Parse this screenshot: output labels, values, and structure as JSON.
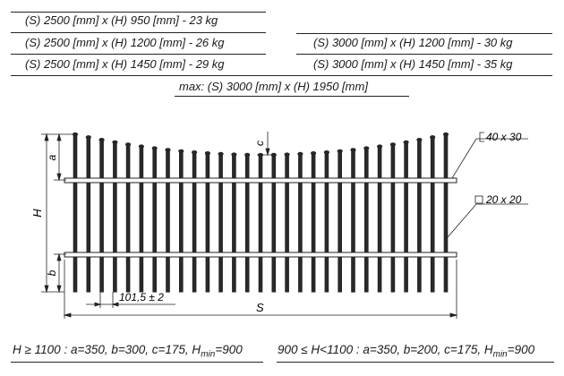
{
  "specs_left": [
    "(S) 2500 [mm] x (H) 950 [mm]   -  23 kg",
    "(S) 2500 [mm] x (H) 1200 [mm]  -  26 kg",
    "(S) 2500 [mm] x (H) 1450 [mm]  -  29 kg"
  ],
  "specs_right": [
    "(S) 3000 [mm] x (H) 1200 [mm]  -  30 kg",
    "(S) 3000 [mm] x (H) 1450 [mm]  -  35 kg"
  ],
  "spec_max": "max: (S) 3000 [mm] x (H) 1950 [mm]",
  "drawing": {
    "label_a": "a",
    "label_b": "b",
    "label_c": "c",
    "label_H": "H",
    "label_S": "S",
    "spacing_label": "101,5 ± 2",
    "rail_profile": "40 x 30",
    "picket_profile": "20 x 20"
  },
  "notes": {
    "left_prefix": "H ≥ 1100 : a=350, b=300, c=175, H",
    "left_sub": "min",
    "left_suffix": "=900",
    "right_prefix": "900 ≤ H<1100 : a=350, b=200, c=175, H",
    "right_sub": "min",
    "right_suffix": "=900"
  }
}
